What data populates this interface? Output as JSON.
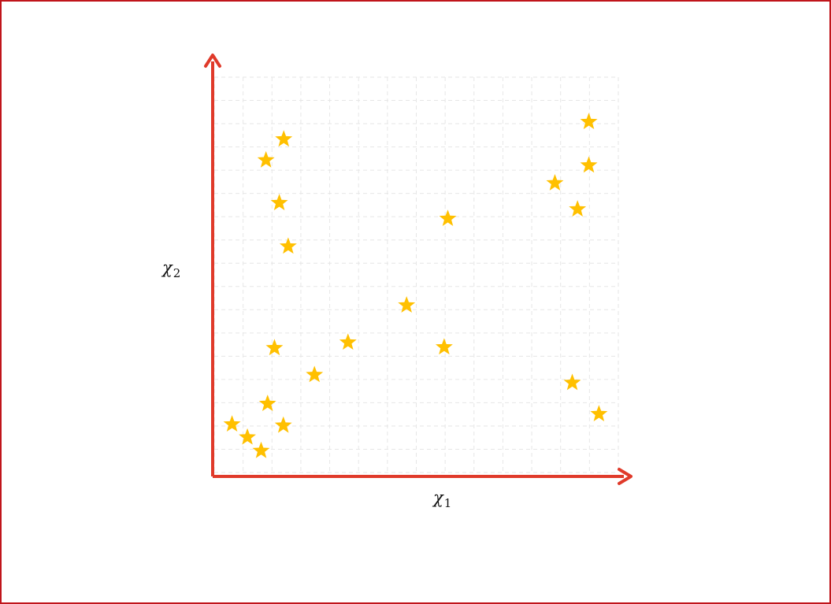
{
  "chart_data": {
    "type": "scatter",
    "marker": "star",
    "title": "",
    "xlabel": {
      "symbol": "χ",
      "subscript": "1"
    },
    "ylabel": {
      "symbol": "χ",
      "subscript": "2"
    },
    "xlim": [
      0,
      10
    ],
    "ylim": [
      0,
      10
    ],
    "grid": true,
    "axis_color": "#e03a2a",
    "marker_color": "#ffc000",
    "grid_color": "#e6e6e6",
    "x": [
      0.44,
      0.82,
      1.16,
      1.32,
      1.49,
      1.71,
      1.83,
      1.61,
      1.28,
      1.72,
      2.48,
      3.31,
      4.76,
      5.69,
      5.78,
      8.43,
      8.86,
      8.99,
      9.27,
      9.27,
      9.52
    ],
    "y": [
      1.22,
      0.89,
      0.55,
      1.74,
      3.15,
      1.19,
      5.72,
      6.82,
      7.9,
      8.43,
      2.47,
      3.29,
      4.23,
      3.17,
      6.42,
      7.32,
      2.27,
      6.66,
      7.77,
      8.87,
      1.48
    ]
  }
}
